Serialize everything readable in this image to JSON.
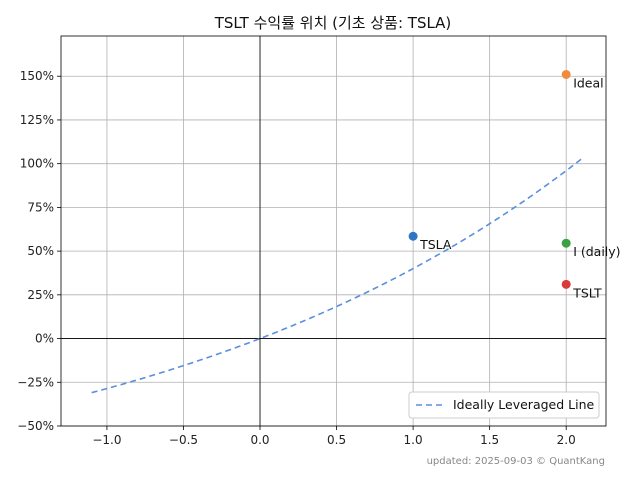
{
  "chart_data": {
    "type": "scatter",
    "title": "TSLT 수익률 위치 (기초 상품: TSLA)",
    "xlabel": "",
    "ylabel": "",
    "xlim": [
      -1.3,
      2.26
    ],
    "ylim": [
      -0.5,
      1.73
    ],
    "x_ticks": [
      -1.0,
      -0.5,
      0.0,
      0.5,
      1.0,
      1.5,
      2.0
    ],
    "x_tick_labels": [
      "−1.0",
      "−0.5",
      "0.0",
      "0.5",
      "1.0",
      "1.5",
      "2.0"
    ],
    "y_ticks": [
      -0.5,
      -0.25,
      0.0,
      0.25,
      0.5,
      0.75,
      1.0,
      1.25,
      1.5
    ],
    "y_tick_labels": [
      "−50%",
      "−25%",
      "0%",
      "25%",
      "50%",
      "75%",
      "100%",
      "125%",
      "150%"
    ],
    "grid": true,
    "zero_lines": true,
    "line": {
      "name": "Ideally Leveraged Line",
      "style": "dashed",
      "color": "#5b8fde",
      "x_range": [
        -1.1,
        2.1
      ],
      "formula": "y = 1.4^x - 1"
    },
    "points": [
      {
        "label": "TSLA",
        "x": 1.0,
        "y": 0.585,
        "color": "#2f75c6"
      },
      {
        "label": "Ideal",
        "x": 2.0,
        "y": 1.51,
        "color": "#f08a3e"
      },
      {
        "label": "I (daily)",
        "x": 2.0,
        "y": 0.545,
        "color": "#3ca241"
      },
      {
        "label": "TSLT",
        "x": 2.0,
        "y": 0.31,
        "color": "#d93b3b"
      }
    ],
    "legend": {
      "position": "bottom-right",
      "entries": [
        "Ideally Leveraged Line"
      ]
    }
  },
  "footer": "updated: 2025-09-03 © QuantKang"
}
